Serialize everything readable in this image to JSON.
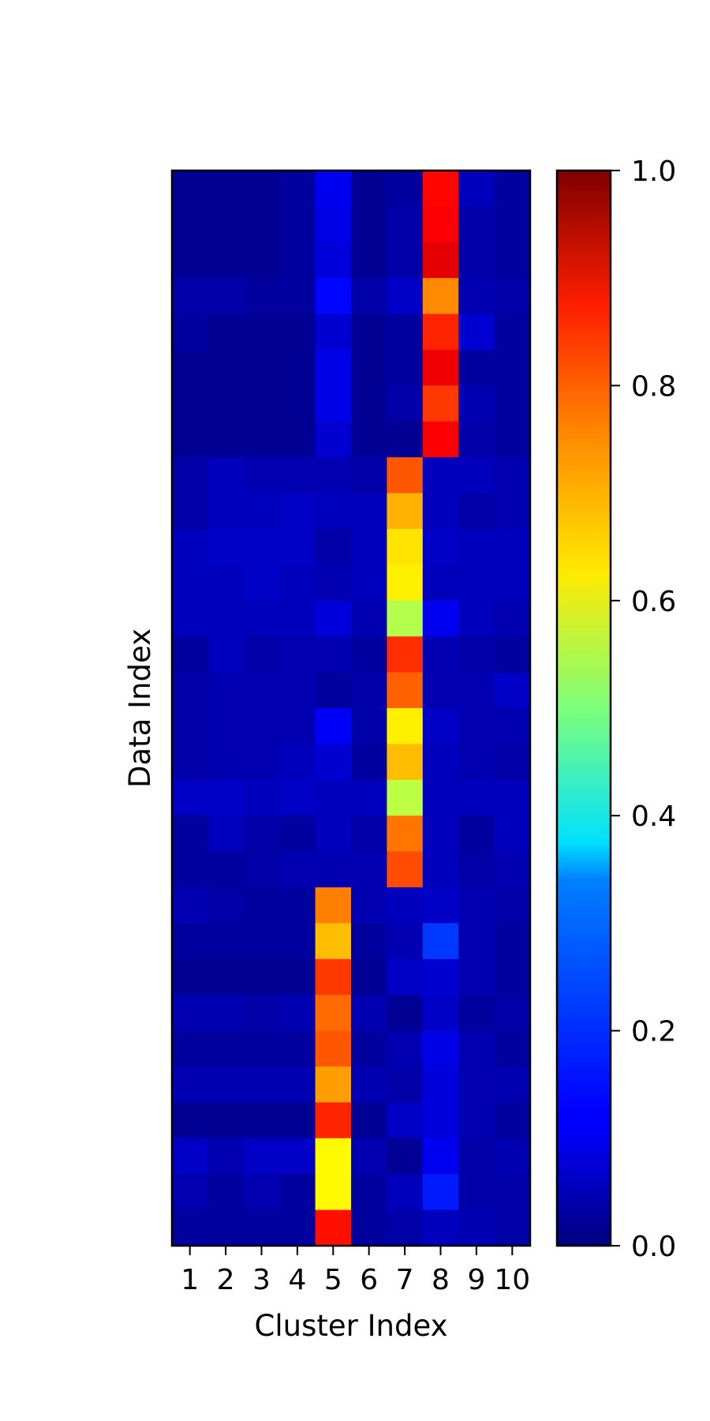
{
  "chart_data": {
    "type": "heatmap",
    "colormap": "jet",
    "xlabel": "Cluster Index",
    "ylabel": "Data Index",
    "x_categories": [
      "1",
      "2",
      "3",
      "4",
      "5",
      "6",
      "7",
      "8",
      "9",
      "10"
    ],
    "y_ticks_shown": false,
    "colorbar": {
      "range": [
        0,
        1
      ],
      "ticks": [
        "0.0",
        "0.2",
        "0.4",
        "0.6",
        "0.8",
        "1.0"
      ]
    },
    "values": [
      [
        0.02,
        0.02,
        0.02,
        0.03,
        0.11,
        0.02,
        0.03,
        0.87,
        0.06,
        0.03
      ],
      [
        0.02,
        0.02,
        0.02,
        0.03,
        0.1,
        0.02,
        0.04,
        0.88,
        0.04,
        0.03
      ],
      [
        0.02,
        0.02,
        0.02,
        0.03,
        0.09,
        0.02,
        0.04,
        0.9,
        0.04,
        0.03
      ],
      [
        0.04,
        0.04,
        0.03,
        0.03,
        0.13,
        0.04,
        0.07,
        0.74,
        0.05,
        0.04
      ],
      [
        0.03,
        0.02,
        0.02,
        0.02,
        0.08,
        0.02,
        0.03,
        0.84,
        0.08,
        0.03
      ],
      [
        0.02,
        0.02,
        0.02,
        0.02,
        0.1,
        0.02,
        0.03,
        0.89,
        0.03,
        0.03
      ],
      [
        0.02,
        0.02,
        0.02,
        0.02,
        0.1,
        0.02,
        0.04,
        0.82,
        0.05,
        0.03
      ],
      [
        0.02,
        0.02,
        0.02,
        0.02,
        0.08,
        0.02,
        0.02,
        0.88,
        0.04,
        0.03
      ],
      [
        0.04,
        0.06,
        0.05,
        0.05,
        0.05,
        0.04,
        0.79,
        0.06,
        0.06,
        0.05
      ],
      [
        0.04,
        0.06,
        0.06,
        0.07,
        0.06,
        0.06,
        0.7,
        0.06,
        0.04,
        0.05
      ],
      [
        0.06,
        0.07,
        0.07,
        0.07,
        0.04,
        0.06,
        0.65,
        0.07,
        0.06,
        0.06
      ],
      [
        0.06,
        0.06,
        0.07,
        0.06,
        0.05,
        0.06,
        0.64,
        0.06,
        0.06,
        0.06
      ],
      [
        0.06,
        0.06,
        0.06,
        0.06,
        0.09,
        0.05,
        0.55,
        0.11,
        0.06,
        0.05
      ],
      [
        0.03,
        0.06,
        0.04,
        0.05,
        0.05,
        0.03,
        0.83,
        0.05,
        0.04,
        0.03
      ],
      [
        0.04,
        0.05,
        0.05,
        0.05,
        0.03,
        0.04,
        0.78,
        0.05,
        0.05,
        0.07
      ],
      [
        0.04,
        0.05,
        0.05,
        0.05,
        0.12,
        0.04,
        0.64,
        0.07,
        0.05,
        0.05
      ],
      [
        0.04,
        0.05,
        0.05,
        0.06,
        0.08,
        0.03,
        0.69,
        0.06,
        0.05,
        0.04
      ],
      [
        0.07,
        0.07,
        0.06,
        0.07,
        0.06,
        0.06,
        0.56,
        0.06,
        0.06,
        0.06
      ],
      [
        0.03,
        0.06,
        0.04,
        0.03,
        0.06,
        0.04,
        0.76,
        0.06,
        0.03,
        0.06
      ],
      [
        0.03,
        0.03,
        0.04,
        0.05,
        0.05,
        0.05,
        0.8,
        0.06,
        0.04,
        0.05
      ],
      [
        0.05,
        0.04,
        0.03,
        0.03,
        0.75,
        0.05,
        0.06,
        0.07,
        0.05,
        0.04
      ],
      [
        0.03,
        0.03,
        0.03,
        0.03,
        0.69,
        0.03,
        0.05,
        0.18,
        0.05,
        0.03
      ],
      [
        0.02,
        0.02,
        0.02,
        0.02,
        0.82,
        0.02,
        0.07,
        0.08,
        0.05,
        0.03
      ],
      [
        0.05,
        0.05,
        0.04,
        0.05,
        0.77,
        0.05,
        0.02,
        0.07,
        0.03,
        0.04
      ],
      [
        0.03,
        0.03,
        0.03,
        0.03,
        0.79,
        0.03,
        0.05,
        0.1,
        0.05,
        0.03
      ],
      [
        0.05,
        0.05,
        0.05,
        0.05,
        0.72,
        0.05,
        0.04,
        0.09,
        0.05,
        0.05
      ],
      [
        0.02,
        0.02,
        0.02,
        0.02,
        0.84,
        0.02,
        0.07,
        0.09,
        0.05,
        0.03
      ],
      [
        0.07,
        0.05,
        0.07,
        0.07,
        0.63,
        0.05,
        0.02,
        0.11,
        0.04,
        0.05
      ],
      [
        0.05,
        0.03,
        0.05,
        0.03,
        0.63,
        0.03,
        0.06,
        0.15,
        0.04,
        0.04
      ],
      [
        0.03,
        0.03,
        0.03,
        0.03,
        0.86,
        0.03,
        0.04,
        0.06,
        0.05,
        0.04
      ]
    ]
  }
}
